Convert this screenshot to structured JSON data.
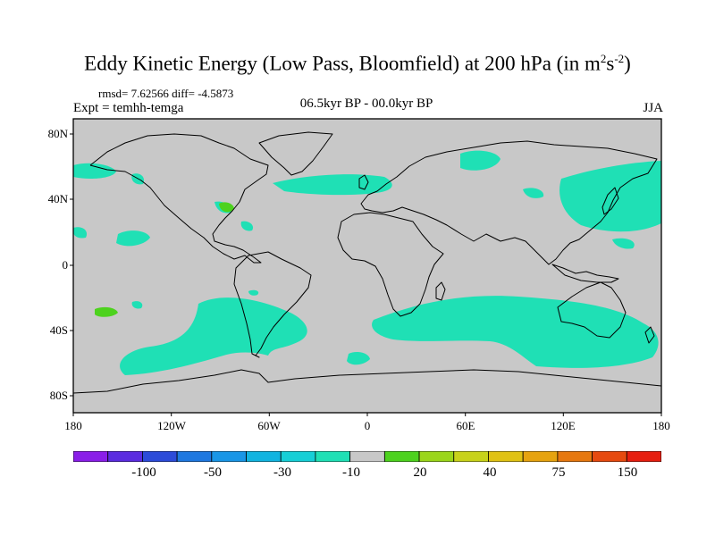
{
  "title": "Eddy Kinetic Energy (Low Pass, Bloomfield) at 200 hPa (in m",
  "title_units": {
    "sup1": "2",
    "s": "s",
    "sup2": "-2",
    "close": ")"
  },
  "stats": "rmsd= 7.62566 diff= -4.5873",
  "expt": "Expt = temhh-temga",
  "period": "06.5kyr BP - 00.0kyr BP",
  "season": "JJA",
  "lat_labels": [
    "80N",
    "40N",
    "0",
    "40S",
    "80S"
  ],
  "lon_labels": [
    "180",
    "120W",
    "60W",
    "0",
    "60E",
    "120E",
    "180"
  ],
  "colorbar": {
    "colors": [
      "#8a1ee8",
      "#5b2ce0",
      "#2c4bd9",
      "#1e78e0",
      "#1996e6",
      "#11b4e0",
      "#16cfd6",
      "#1fe0b5",
      "#c8c8c8",
      "#4dd21e",
      "#9bd61a",
      "#c8d21a",
      "#e0c214",
      "#e6a30f",
      "#e6780f",
      "#e64a0f",
      "#e61e0f"
    ],
    "labels": [
      "-100",
      "-50",
      "-30",
      "-10",
      "20",
      "40",
      "75",
      "150"
    ]
  },
  "map_colors": {
    "land_ocean": "#c8c8c8",
    "negative": "#1fe0b5",
    "positive": "#4dd21e"
  }
}
